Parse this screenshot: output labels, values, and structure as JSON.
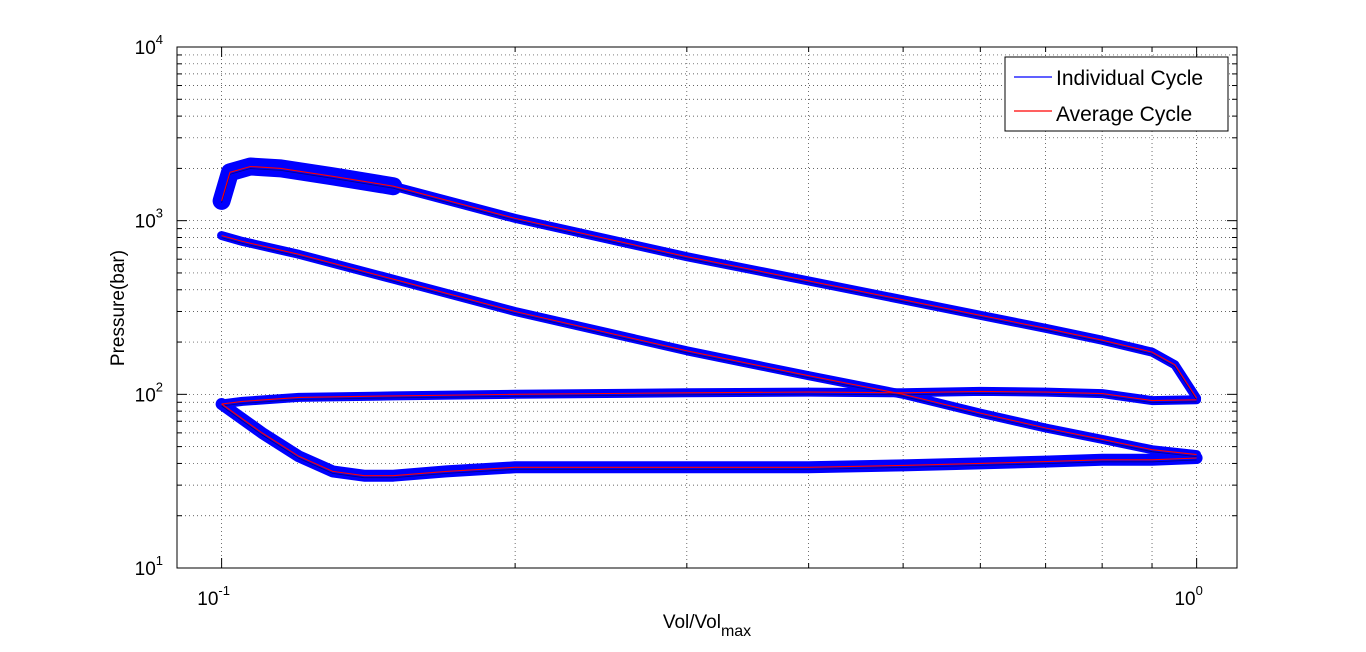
{
  "chart_data": {
    "type": "line",
    "xscale": "log",
    "yscale": "log",
    "xlim": [
      0.09,
      1.1
    ],
    "ylim": [
      10,
      10000
    ],
    "grid": true,
    "legend_position": "top-right",
    "xlabel": "Vol/Vol",
    "xlabel_sub": "max",
    "ylabel": "Pressure(bar)",
    "x_ticks": [
      {
        "value": 0.1,
        "base": "10",
        "exp": "-1"
      },
      {
        "value": 1,
        "base": "10",
        "exp": "0"
      }
    ],
    "y_ticks": [
      {
        "value": 10,
        "base": "10",
        "exp": "1"
      },
      {
        "value": 100,
        "base": "10",
        "exp": "2"
      },
      {
        "value": 1000,
        "base": "10",
        "exp": "3"
      },
      {
        "value": 10000,
        "base": "10",
        "exp": "4"
      }
    ],
    "series": [
      {
        "name": "Individual Cycle",
        "color": "#0000ff",
        "compression": {
          "x": [
            1.0,
            0.9,
            0.8,
            0.7,
            0.6,
            0.5,
            0.4,
            0.3,
            0.2,
            0.15,
            0.12,
            0.105,
            0.1
          ],
          "y": [
            45,
            48,
            55,
            64,
            78,
            100,
            128,
            178,
            300,
            460,
            640,
            760,
            820
          ]
        },
        "expansion": {
          "x": [
            0.1,
            0.102,
            0.107,
            0.115,
            0.13,
            0.15,
            0.2,
            0.3,
            0.4,
            0.5,
            0.6,
            0.7,
            0.8,
            0.9,
            0.95,
            1.0
          ],
          "y": [
            1300,
            1900,
            2050,
            2000,
            1800,
            1580,
            1030,
            620,
            450,
            350,
            285,
            240,
            205,
            175,
            148,
            95
          ]
        },
        "exhaust": {
          "x": [
            1.0,
            0.9,
            0.8,
            0.7,
            0.6,
            0.5,
            0.4,
            0.3,
            0.2,
            0.15,
            0.12,
            0.105,
            0.1
          ],
          "y": [
            93,
            92,
            101,
            103,
            104,
            102,
            103,
            102,
            100,
            98,
            96,
            91,
            88
          ]
        },
        "intake": {
          "x": [
            0.1,
            0.11,
            0.12,
            0.13,
            0.14,
            0.15,
            0.17,
            0.2,
            0.3,
            0.4,
            0.5,
            0.6,
            0.7,
            0.8,
            0.9,
            1.0
          ],
          "y": [
            88,
            60,
            44,
            36,
            34,
            34,
            36,
            38,
            38,
            38,
            39,
            40,
            41,
            42,
            42,
            43
          ]
        },
        "band_width": 9,
        "extra_band_widths": {
          "expansion_start": 18,
          "intake": 12
        }
      },
      {
        "name": "Average Cycle",
        "color": "#ff0000",
        "compression": {
          "x": [
            1.0,
            0.9,
            0.8,
            0.7,
            0.6,
            0.5,
            0.4,
            0.3,
            0.2,
            0.15,
            0.12,
            0.105,
            0.1
          ],
          "y": [
            45,
            48,
            55,
            64,
            78,
            100,
            128,
            178,
            300,
            460,
            640,
            760,
            820
          ]
        },
        "expansion": {
          "x": [
            0.1,
            0.102,
            0.107,
            0.115,
            0.13,
            0.15,
            0.2,
            0.3,
            0.4,
            0.5,
            0.6,
            0.7,
            0.8,
            0.9,
            0.95,
            1.0
          ],
          "y": [
            1300,
            1900,
            2050,
            2000,
            1800,
            1580,
            1030,
            620,
            450,
            350,
            285,
            240,
            205,
            175,
            148,
            95
          ]
        },
        "exhaust": {
          "x": [
            1.0,
            0.9,
            0.8,
            0.7,
            0.6,
            0.5,
            0.4,
            0.3,
            0.2,
            0.15,
            0.12,
            0.105,
            0.1
          ],
          "y": [
            93,
            92,
            101,
            103,
            104,
            102,
            103,
            102,
            100,
            98,
            96,
            91,
            88
          ]
        },
        "intake": {
          "x": [
            0.1,
            0.11,
            0.12,
            0.13,
            0.14,
            0.15,
            0.17,
            0.2,
            0.3,
            0.4,
            0.5,
            0.6,
            0.7,
            0.8,
            0.9,
            1.0
          ],
          "y": [
            88,
            60,
            44,
            36,
            34,
            34,
            36,
            38,
            38,
            38,
            39,
            40,
            41,
            42,
            42,
            43
          ]
        }
      }
    ]
  }
}
